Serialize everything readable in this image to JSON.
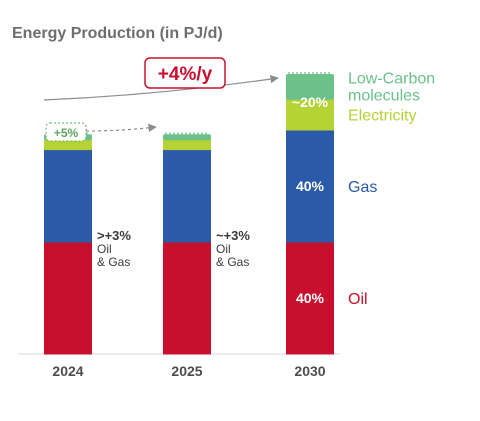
{
  "colors": {
    "oil": "#c8102e",
    "gas": "#2a5aa8",
    "electricity": "#b5d334",
    "low_carbon": "#6cc08a",
    "title": "#6e6e6e",
    "axis_text": "#4d4d4d",
    "annotation_text": "#3a3a3a",
    "arrow": "#8c8c8c",
    "growth_badge": "#c8102e",
    "small_badge": "#5aa865"
  },
  "chart_data": {
    "type": "bar",
    "stacked": true,
    "title": "Energy Production (in PJ/d)",
    "xlabel": "",
    "ylabel": "",
    "categories": [
      "2024",
      "2025",
      "2030"
    ],
    "series": [
      {
        "name": "Oil",
        "color_key": "oil",
        "values": [
          40,
          40,
          40
        ]
      },
      {
        "name": "Gas",
        "color_key": "gas",
        "values": [
          33,
          33,
          40
        ]
      },
      {
        "name": "Electricity",
        "color_key": "electricity",
        "values": [
          3.5,
          3.5,
          11
        ]
      },
      {
        "name": "Low-Carbon molecules",
        "color_key": "low_carbon",
        "values": [
          2,
          2,
          9
        ]
      }
    ],
    "ylim": [
      0,
      100
    ],
    "grid": false,
    "legend": {
      "placement": "right",
      "entries": [
        {
          "lines": [
            "Low-Carbon",
            "molecules"
          ],
          "color_key": "low_carbon",
          "series": "Low-Carbon molecules"
        },
        {
          "lines": [
            "Electricity"
          ],
          "color_key": "electricity",
          "series": "Electricity"
        },
        {
          "lines": [
            "Gas"
          ],
          "color_key": "gas",
          "series": "Gas"
        },
        {
          "lines": [
            "Oil"
          ],
          "color_key": "oil",
          "series": "Oil"
        }
      ]
    },
    "segment_labels": [
      {
        "category": "2030",
        "series": "Low-Carbon molecules",
        "text": "~20%",
        "spans_with": "Electricity"
      },
      {
        "category": "2030",
        "series": "Gas",
        "text": "40%"
      },
      {
        "category": "2030",
        "series": "Oil",
        "text": "40%"
      }
    ],
    "annotations": [
      {
        "category": "2024",
        "lines": [
          ">+3%",
          "Oil",
          "& Gas"
        ]
      },
      {
        "category": "2025",
        "lines": [
          "~+3%",
          "Oil",
          "& Gas"
        ]
      }
    ],
    "growth_badge": "+4%/y",
    "small_badge": "+5%"
  }
}
